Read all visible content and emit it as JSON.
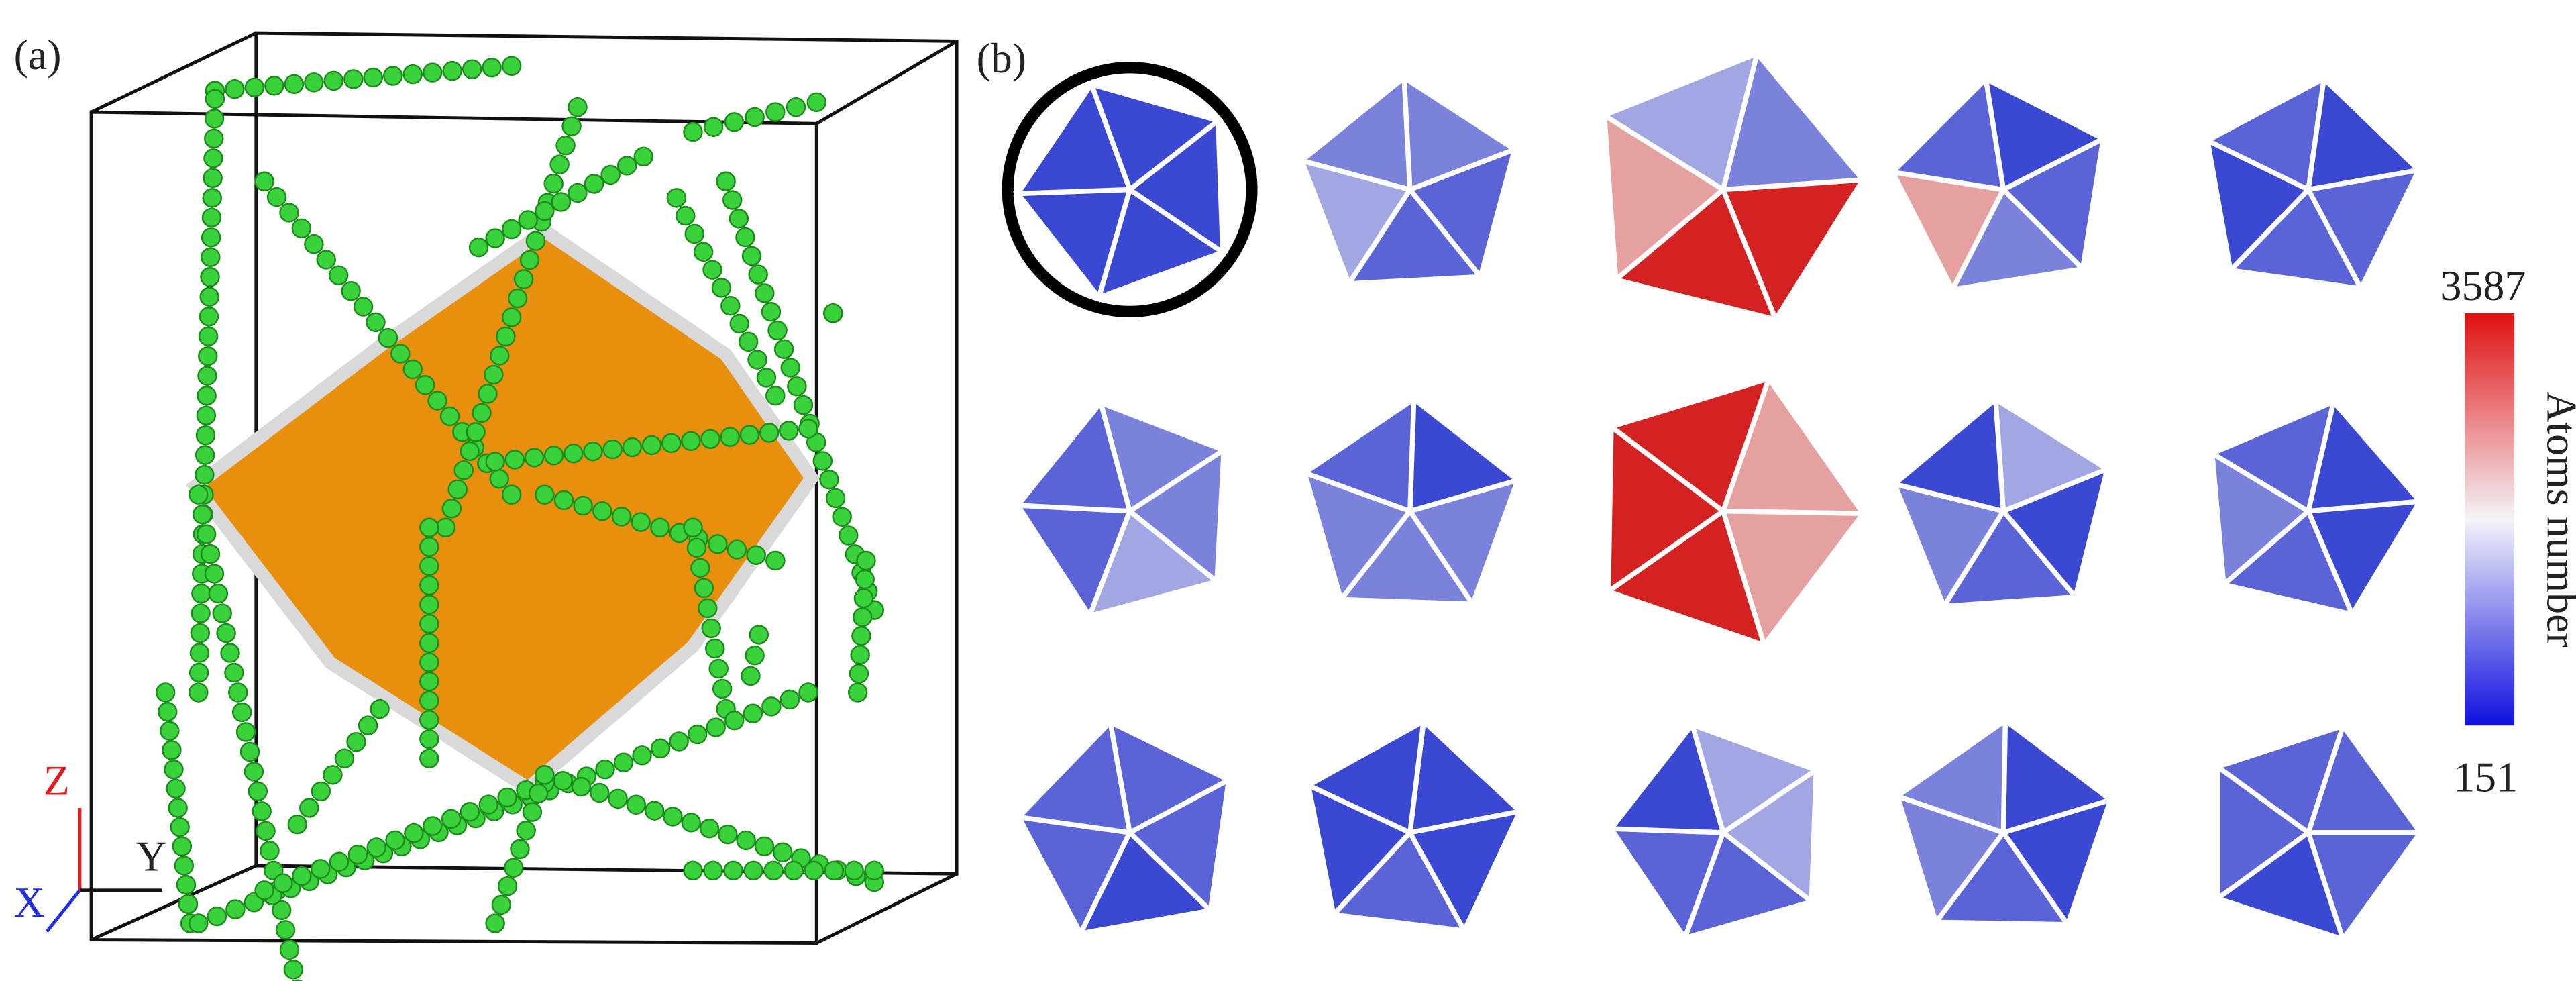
{
  "panel_a": {
    "label": "(a)",
    "axes": {
      "z": "Z",
      "y": "Y",
      "x": "X"
    }
  },
  "panel_b": {
    "label": "(b)",
    "colorbar": {
      "title": "Atoms number",
      "max": 3587,
      "min": 151
    }
  }
}
